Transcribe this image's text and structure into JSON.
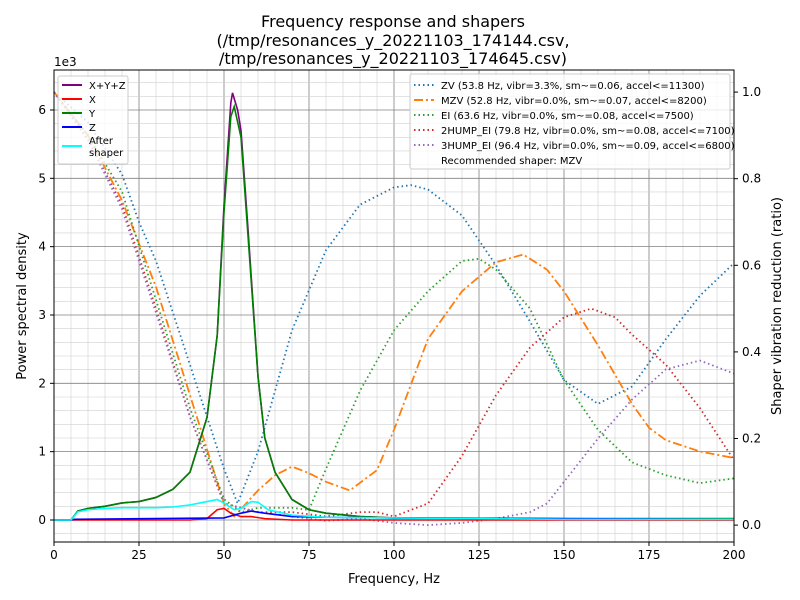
{
  "chart_data": {
    "type": "line",
    "title": [
      "Frequency response and shapers",
      "(/tmp/resonances_y_20221103_174144.csv,",
      "/tmp/resonances_y_20221103_174645.csv)"
    ],
    "xlabel": "Frequency, Hz",
    "ylabel": "Power spectral density",
    "ylabel_right": "Shaper vibration reduction (ratio)",
    "y_offset_label": "1e3",
    "xlim": [
      0,
      200
    ],
    "ylim": [
      -0.322,
      6.585
    ],
    "ylim_right": [
      -0.039,
      1.051
    ],
    "xticks": [
      "0",
      "25",
      "50",
      "75",
      "100",
      "125",
      "150",
      "175",
      "200"
    ],
    "yticks": [
      "0",
      "1",
      "2",
      "3",
      "4",
      "5",
      "6"
    ],
    "yticks_right": [
      "0.0",
      "0.2",
      "0.4",
      "0.6",
      "0.8",
      "1.0"
    ],
    "grid": true,
    "psd_legend_placement": "top-left",
    "shaper_legend_placement": "top-right",
    "psd_series": [
      {
        "name": "X+Y+Z",
        "color": "#800080",
        "x": [
          0,
          5,
          7,
          10,
          15,
          20,
          25,
          30,
          35,
          40,
          45,
          48,
          50,
          52,
          52.5,
          54,
          55,
          57,
          60,
          62,
          65,
          70,
          75,
          80,
          90,
          100,
          150,
          200
        ],
        "y": [
          0,
          0,
          0.13,
          0.17,
          0.2,
          0.25,
          0.27,
          0.33,
          0.45,
          0.7,
          1.5,
          2.7,
          4.6,
          6.1,
          6.25,
          6.0,
          5.7,
          4.3,
          2.1,
          1.2,
          0.7,
          0.3,
          0.15,
          0.1,
          0.05,
          0.03,
          0.02,
          0.02
        ]
      },
      {
        "name": "X",
        "color": "#ff0000",
        "x": [
          0,
          40,
          45,
          48,
          50,
          52,
          55,
          58,
          62,
          70,
          200
        ],
        "y": [
          0,
          0,
          0.02,
          0.15,
          0.17,
          0.1,
          0.05,
          0.05,
          0.02,
          0,
          0
        ]
      },
      {
        "name": "Y",
        "color": "#008000",
        "x": [
          0,
          5,
          7,
          10,
          15,
          20,
          25,
          30,
          35,
          40,
          45,
          48,
          50,
          52,
          53,
          55,
          57,
          60,
          62,
          65,
          70,
          75,
          80,
          90,
          100,
          150,
          200
        ],
        "y": [
          0,
          0,
          0.13,
          0.17,
          0.2,
          0.25,
          0.27,
          0.33,
          0.45,
          0.7,
          1.5,
          2.7,
          4.5,
          5.9,
          6.05,
          5.6,
          4.2,
          2.1,
          1.2,
          0.7,
          0.3,
          0.15,
          0.1,
          0.05,
          0.03,
          0.02,
          0.02
        ]
      },
      {
        "name": "Z",
        "color": "#0000ff",
        "x": [
          0,
          5,
          6,
          50,
          55,
          58,
          62,
          70,
          80,
          100,
          150,
          200
        ],
        "y": [
          0,
          0,
          0.01,
          0.03,
          0.1,
          0.13,
          0.1,
          0.05,
          0.04,
          0.03,
          0.02,
          0.01
        ]
      },
      {
        "name": "After\nshaper",
        "label_lines": [
          "After",
          "shaper"
        ],
        "color": "#00ffff",
        "x": [
          0,
          5,
          7,
          10,
          15,
          20,
          30,
          35,
          40,
          45,
          48,
          50,
          53,
          55,
          58,
          60,
          63,
          70,
          80,
          100,
          150,
          200
        ],
        "y": [
          0,
          0,
          0.12,
          0.15,
          0.17,
          0.18,
          0.18,
          0.19,
          0.22,
          0.27,
          0.3,
          0.25,
          0.15,
          0.17,
          0.27,
          0.26,
          0.15,
          0.07,
          0.04,
          0.03,
          0.01,
          0.01
        ]
      }
    ],
    "shaper_series": [
      {
        "name": "ZV (53.8 Hz, vibr=3.3%, sm~=0.06, accel<=11300)",
        "color": "#1f77b4",
        "dash": "dotted",
        "x": [
          0,
          10,
          20,
          25,
          30,
          40,
          50,
          54,
          60,
          70,
          80,
          90,
          100,
          105,
          110,
          120,
          130,
          140,
          150,
          160,
          170,
          180,
          190,
          200
        ],
        "y": [
          1.0,
          0.93,
          0.81,
          0.7,
          0.61,
          0.37,
          0.13,
          0.05,
          0.17,
          0.45,
          0.635,
          0.74,
          0.78,
          0.785,
          0.775,
          0.715,
          0.6,
          0.47,
          0.335,
          0.28,
          0.32,
          0.43,
          0.53,
          0.605
        ]
      },
      {
        "name": "MZV (52.8 Hz, vibr=0.0%, sm~=0.07, accel<=8200)",
        "color": "#ff7f0e",
        "dash": "dashdot",
        "x": [
          0,
          10,
          20,
          30,
          40,
          50,
          53,
          60,
          65,
          70,
          75,
          80,
          87,
          95,
          100,
          110,
          120,
          130,
          138,
          145,
          150,
          160,
          170,
          175,
          180,
          190,
          200
        ],
        "y": [
          1.0,
          0.9,
          0.75,
          0.55,
          0.3,
          0.05,
          0.02,
          0.08,
          0.115,
          0.135,
          0.12,
          0.1,
          0.08,
          0.127,
          0.22,
          0.43,
          0.54,
          0.607,
          0.625,
          0.59,
          0.54,
          0.415,
          0.28,
          0.225,
          0.196,
          0.17,
          0.155
        ]
      },
      {
        "name": "EI (63.6 Hz, vibr=0.0%, sm~=0.08, accel<=7500)",
        "color": "#2ca02c",
        "dash": "dotted",
        "x": [
          0,
          10,
          20,
          30,
          40,
          50,
          55,
          60,
          65,
          70,
          75,
          80,
          90,
          100,
          110,
          120,
          125,
          130,
          140,
          150,
          160,
          170,
          180,
          190,
          200
        ],
        "y": [
          1.0,
          0.9,
          0.77,
          0.52,
          0.27,
          0.06,
          0.03,
          0.04,
          0.04,
          0.04,
          0.035,
          0.13,
          0.31,
          0.45,
          0.54,
          0.61,
          0.615,
          0.59,
          0.5,
          0.335,
          0.22,
          0.145,
          0.115,
          0.097,
          0.108
        ]
      },
      {
        "name": "2HUMP_EI (79.8 Hz, vibr=0.0%, sm~=0.08, accel<=7100)",
        "color": "#d62728",
        "dash": "dotted",
        "x": [
          0,
          10,
          20,
          30,
          40,
          50,
          60,
          70,
          80,
          90,
          95,
          100,
          110,
          120,
          130,
          140,
          150,
          158,
          165,
          170,
          180,
          190,
          200
        ],
        "y": [
          1.0,
          0.89,
          0.74,
          0.5,
          0.25,
          0.05,
          0.03,
          0.03,
          0.02,
          0.03,
          0.03,
          0.02,
          0.05,
          0.16,
          0.3,
          0.41,
          0.48,
          0.5,
          0.48,
          0.44,
          0.37,
          0.27,
          0.15
        ]
      },
      {
        "name": "3HUMP_EI (96.4 Hz, vibr=0.0%, sm~=0.09, accel<=6800)",
        "color": "#9467bd",
        "dash": "dotted",
        "x": [
          0,
          10,
          20,
          30,
          40,
          50,
          60,
          70,
          80,
          90,
          100,
          110,
          120,
          130,
          140,
          145,
          150,
          160,
          170,
          180,
          190,
          200
        ],
        "y": [
          1.0,
          0.89,
          0.73,
          0.49,
          0.25,
          0.05,
          0.03,
          0.02,
          0.01,
          0.015,
          0.005,
          0,
          0.005,
          0.015,
          0.03,
          0.05,
          0.1,
          0.2,
          0.29,
          0.36,
          0.38,
          0.35
        ]
      }
    ],
    "recommended": "Recommended shaper: MZV"
  }
}
